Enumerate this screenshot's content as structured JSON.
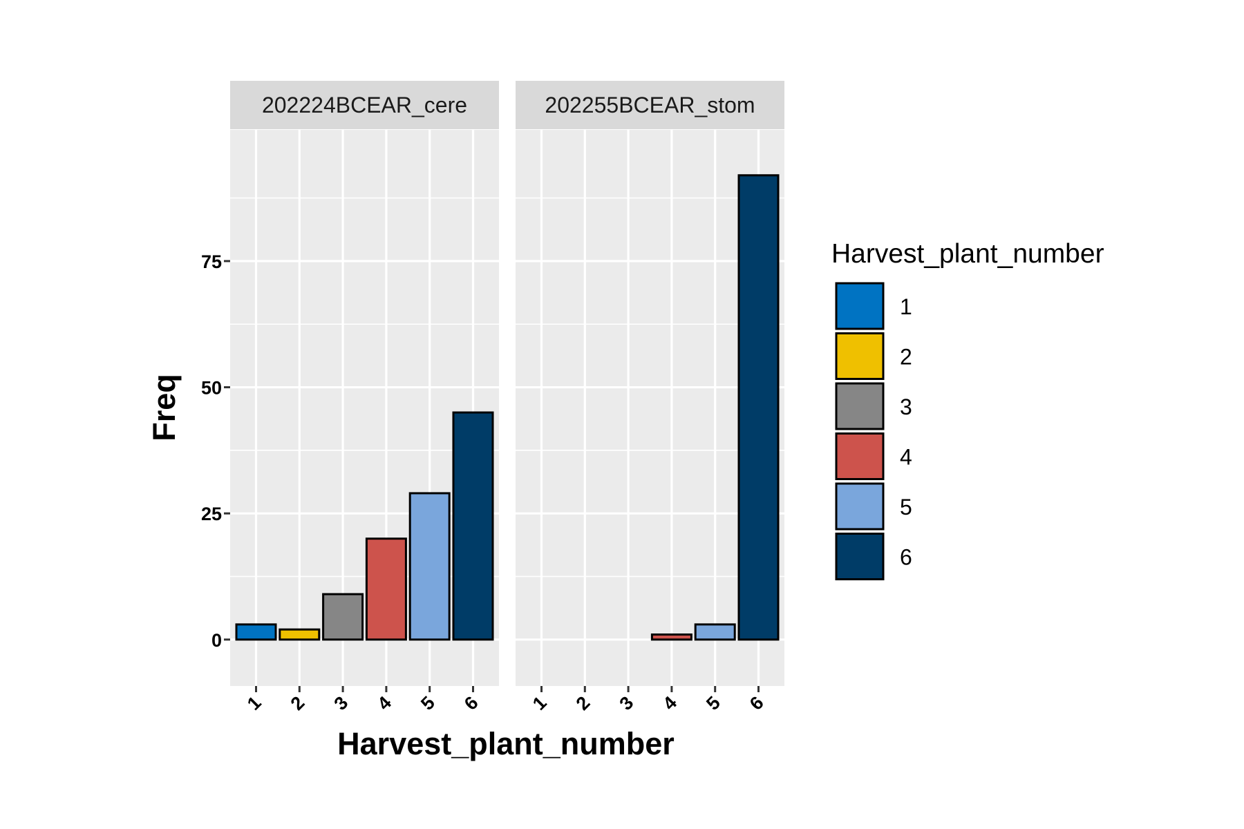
{
  "chart_data": {
    "type": "bar",
    "xlabel": "Harvest_plant_number",
    "ylabel": "Freq",
    "ylim": [
      -9.2,
      101
    ],
    "yticks": [
      0,
      25,
      50,
      75
    ],
    "categories": [
      "1",
      "2",
      "3",
      "4",
      "5",
      "6"
    ],
    "facets": [
      {
        "label": "202224BCEAR_cere",
        "values": [
          3,
          2,
          9,
          20,
          29,
          45
        ]
      },
      {
        "label": "202255BCEAR_stom",
        "values": [
          0,
          0,
          0,
          1,
          3,
          92
        ]
      }
    ],
    "legend": {
      "title": "Harvest_plant_number",
      "position": "right",
      "entries": [
        {
          "label": "1",
          "color": "#0073C2"
        },
        {
          "label": "2",
          "color": "#EFC000"
        },
        {
          "label": "3",
          "color": "#868686"
        },
        {
          "label": "4",
          "color": "#CD534C"
        },
        {
          "label": "5",
          "color": "#7AA6DC"
        },
        {
          "label": "6",
          "color": "#003C67"
        }
      ]
    },
    "grid": true
  }
}
